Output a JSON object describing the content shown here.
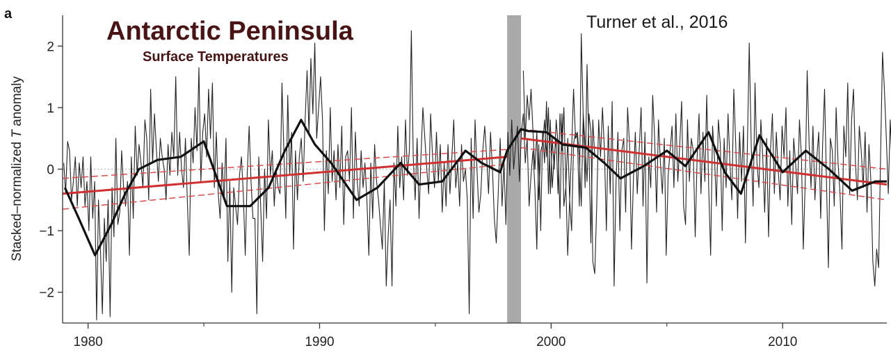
{
  "chart_data": {
    "type": "line",
    "panel_letter": "a",
    "title": "Antarctic Peninsula",
    "subtitle": "Surface Temperatures",
    "annotation": "Turner et al., 2016",
    "xlabel": "",
    "ylabel_prefix": "Stacked–normalized ",
    "ylabel_var": "T",
    "ylabel_suffix": " anomaly",
    "xlim": [
      1978.9,
      2014.5
    ],
    "ylim": [
      -2.5,
      2.5
    ],
    "xticks": [
      1980,
      1990,
      2000,
      2010
    ],
    "xticks_minor": [
      1985,
      1995,
      2005
    ],
    "yticks": [
      -2,
      -1,
      0,
      1,
      2
    ],
    "yticklabels": [
      "−2",
      "−1",
      "0",
      "1",
      "2"
    ],
    "zero_line": true,
    "shaded_band": {
      "x0": 1998.1,
      "x1": 1998.7,
      "color": "#a9a9a9"
    },
    "colors": {
      "monthly": "#222222",
      "smoothed": "#111111",
      "trend": "#d03030",
      "confidence": "#e04848"
    },
    "series": [
      {
        "name": "",
        "role": "monthly",
        "x_start": 1978.95,
        "x_step": 0.0834,
        "values": [
          0.1,
          -0.4,
          0.45,
          0.3,
          -0.5,
          -0.2,
          0.2,
          -0.6,
          0.1,
          -0.3,
          0.2,
          -0.6,
          -0.2,
          -1.0,
          0.2,
          -0.8,
          -0.2,
          -2.45,
          -0.5,
          -1.3,
          -2.35,
          -0.8,
          -1.5,
          -0.5,
          -2.4,
          -0.3,
          -1.1,
          0.5,
          -0.9,
          -0.7,
          0.3,
          -0.3,
          -0.6,
          -0.2,
          -1.4,
          0.2,
          -0.8,
          0.7,
          -0.1,
          0.4,
          0.1,
          -0.3,
          0.8,
          0.5,
          -0.5,
          1.3,
          0.1,
          0.9,
          0.3,
          -0.2,
          0.5,
          0.2,
          0.0,
          -0.5,
          0.4,
          -0.1,
          0.6,
          0.2,
          1.5,
          -0.1,
          0.6,
          0.0,
          -0.3,
          0.5,
          -0.5,
          -1.4,
          0.5,
          0.1,
          1.0,
          0.3,
          1.65,
          -0.2,
          0.6,
          0.9,
          0.2,
          1.3,
          0.5,
          1.4,
          -0.3,
          0.6,
          -0.4,
          -0.8,
          0.1,
          -0.5,
          0.5,
          -1.5,
          -0.2,
          -2.0,
          -0.3,
          -0.6,
          -0.9,
          -0.1,
          0.2,
          -0.4,
          -1.4,
          -0.1,
          0.7,
          -0.2,
          -0.8,
          -0.8,
          -2.35,
          0.2,
          -0.6,
          -1.5,
          0.0,
          -0.8,
          0.8,
          -0.1,
          0.3,
          -0.6,
          0.0,
          -0.3,
          -0.4,
          1.4,
          0.3,
          -0.8,
          1.2,
          -0.1,
          0.6,
          -1.3,
          0.3,
          -0.5,
          0.2,
          0.5,
          -0.2,
          0.8,
          1.6,
          0.6,
          1.8,
          0.9,
          2.05,
          0.5,
          1.0,
          1.5,
          0.8,
          -1.0,
          0.3,
          -0.4,
          1.0,
          -0.2,
          0.3,
          -0.5,
          0.4,
          -0.3,
          0.7,
          -0.9,
          0.2,
          0.3,
          -0.2,
          1.0,
          -0.8,
          0.6,
          -0.2,
          -0.6,
          0.3,
          -0.3,
          0.1,
          -0.5,
          -1.4,
          0.1,
          -0.8,
          0.4,
          -0.2,
          -0.5,
          -0.9,
          -1.3,
          -0.2,
          -1.9,
          -1.1,
          -0.5,
          -1.9,
          0.1,
          -0.6,
          0.7,
          -0.3,
          0.2,
          -0.5,
          0.8,
          -0.1,
          0.3,
          2.25,
          0.2,
          -0.5,
          0.5,
          -0.8,
          0.2,
          1.0,
          0.5,
          0.0,
          -0.4,
          0.9,
          0.2,
          -0.3,
          0.6,
          -0.2,
          0.4,
          -0.7,
          0.1,
          -0.6,
          0.4,
          -0.4,
          0.2,
          0.8,
          -0.3,
          0.1,
          -0.6,
          0.4,
          -0.2,
          0.0,
          -0.5,
          -2.35,
          0.5,
          -0.8,
          0.8,
          0.0,
          -0.7,
          -0.4,
          0.3,
          0.7,
          0.2,
          -0.4,
          0.6,
          0.0,
          -0.8,
          -1.2,
          -0.4,
          0.5,
          -0.6,
          0.1,
          -0.9,
          0.6,
          -0.1,
          0.8,
          0.0,
          0.4,
          0.7,
          -0.2,
          0.6,
          0.9,
          0.1,
          0.5,
          -0.6,
          -0.1,
          0.3,
          -0.3,
          -1.3,
          0.4,
          -1.0,
          0.6,
          0.1,
          1.1,
          -0.4,
          0.8,
          -0.3,
          0.2,
          0.5,
          -0.4,
          0.9,
          0.3,
          1.0,
          -0.2,
          -1.4,
          -0.5,
          -1.0,
          0.4,
          0.6,
          0.5,
          -0.6,
          2.2,
          0.9,
          -0.3,
          1.7,
          0.3,
          -1.2,
          0.8,
          0.2
        ],
        "after_band": {
          "x_start": 1998.8,
          "x_step": 0.0834,
          "values": [
            1.6,
            0.5,
            1.2,
            0.8,
            1.3,
            0.6,
            0.0,
            0.6,
            -0.5,
            0.3,
            0.4,
            0.8,
            0.2,
            1.0,
            -0.4,
            0.5,
            0.0,
            0.8,
            0.4,
            -0.8,
            0.9,
            -0.6,
            -0.3,
            0.5,
            -0.5,
            0.3,
            1.3,
            0.5,
            0.6,
            0.2,
            -0.6,
            0.9,
            0.4,
            -0.2,
            0.9,
            0.6,
            -1.5,
            -1.7,
            -0.6,
            0.8,
            0.2,
            1.0,
            0.3,
            -1.0,
            0.7,
            -0.4,
            1.1,
            -1.9,
            -0.2,
            0.6,
            -1.0,
            0.3,
            0.5,
            -0.7,
            1.0,
            0.4,
            -1.3,
            -0.2,
            0.6,
            -0.4,
            0.3,
            1.0,
            -0.6,
            0.6,
            -1.85,
            0.2,
            -0.3,
            1.2,
            0.5,
            -0.7,
            0.8,
            0.1,
            -0.4,
            0.5,
            -1.4,
            -0.1,
            0.3,
            0.7,
            -0.3,
            0.9,
            -0.2,
            0.4,
            1.1,
            -0.6,
            -0.9,
            0.8,
            -0.2,
            0.5,
            0.3,
            -1.1,
            0.2,
            0.9,
            -0.4,
            0.6,
            -0.2,
            1.2,
            -0.3,
            -1.4,
            0.7,
            0.2,
            -0.6,
            0.8,
            0.4,
            -1.0,
            0.5,
            -0.3,
            0.9,
            0.1,
            -0.5,
            1.3,
            0.4,
            -0.8,
            0.6,
            -0.2,
            0.7,
            -1.2,
            0.3,
            2.05,
            0.4,
            -0.6,
            1.4,
            0.1,
            -0.3,
            0.8,
            0.2,
            -0.7,
            0.5,
            -1.1,
            0.3,
            0.9,
            -0.4,
            0.6,
            0.0,
            -0.5,
            0.7,
            0.2,
            1.0,
            -0.6,
            0.3,
            -0.9,
            0.5,
            0.1,
            -0.4,
            0.8,
            0.2,
            -1.3,
            -0.2,
            1.6,
            0.4,
            -0.3,
            0.7,
            -0.5,
            0.2,
            0.6,
            -0.8,
            0.4,
            1.3,
            -0.2,
            -1.6,
            0.5,
            0.3,
            -0.6,
            1.0,
            0.1,
            -0.4,
            -1.3,
            0.7,
            0.2,
            1.4,
            -0.4,
            0.8,
            1.3,
            0.1,
            -0.5,
            0.7,
            0.3,
            -0.3,
            0.6,
            -0.7,
            0.4,
            -0.2,
            -1.5,
            -1.9,
            -1.3,
            -1.6,
            0.2,
            1.9,
            1.3,
            0.5,
            -0.4,
            0.8,
            0.0,
            -0.6,
            0.4,
            -1.5,
            1.4,
            -0.2,
            0.9,
            -0.4,
            0.6,
            -1.1,
            0.3,
            1.3,
            -1.1
          ]
        }
      },
      {
        "name": "",
        "role": "smoothed",
        "x": [
          1979.0,
          1979.6,
          1980.3,
          1981.0,
          1981.6,
          1982.2,
          1983.0,
          1984.0,
          1985.0,
          1986.0,
          1987.0,
          1987.8,
          1988.5,
          1989.2,
          1989.8,
          1990.5,
          1991.6,
          1992.5,
          1993.5,
          1994.3,
          1995.3,
          1996.3,
          1997.0,
          1997.8,
          1998.1,
          1998.7,
          1999.0,
          1999.8,
          2000.5,
          2001.5,
          2002.3,
          2003.0,
          2004.0,
          2005.0,
          2005.8,
          2006.8,
          2007.5,
          2008.2,
          2009.0,
          2010.0,
          2011.0,
          2012.0,
          2013.0,
          2014.0,
          2014.5
        ],
        "y": [
          -0.3,
          -0.8,
          -1.4,
          -0.9,
          -0.4,
          0.0,
          0.15,
          0.2,
          0.45,
          -0.6,
          -0.6,
          -0.3,
          0.3,
          0.8,
          0.4,
          0.1,
          -0.5,
          -0.3,
          0.1,
          -0.25,
          -0.2,
          0.3,
          0.1,
          -0.05,
          0.3,
          0.65,
          0.62,
          0.6,
          0.4,
          0.35,
          0.1,
          -0.15,
          0.05,
          0.3,
          0.05,
          0.6,
          -0.05,
          -0.4,
          0.55,
          -0.05,
          0.3,
          0.0,
          -0.35,
          -0.2,
          -0.2
        ]
      },
      {
        "name": "",
        "role": "trend",
        "segments": [
          {
            "x": [
              1978.9,
              1998.1
            ],
            "y": [
              -0.4,
              0.2
            ]
          },
          {
            "x": [
              1998.7,
              2014.5
            ],
            "y": [
              0.5,
              -0.25
            ]
          }
        ]
      }
    ],
    "confidence_bands": [
      {
        "x": [
          1978.9,
          1998.1
        ],
        "upper": [
          -0.15,
          0.32
        ],
        "lower": [
          -0.65,
          0.08
        ]
      },
      {
        "x": [
          1998.7,
          2014.5
        ],
        "upper": [
          0.65,
          0.0
        ],
        "lower": [
          0.35,
          -0.5
        ]
      }
    ],
    "grid": false,
    "legend": "none"
  }
}
